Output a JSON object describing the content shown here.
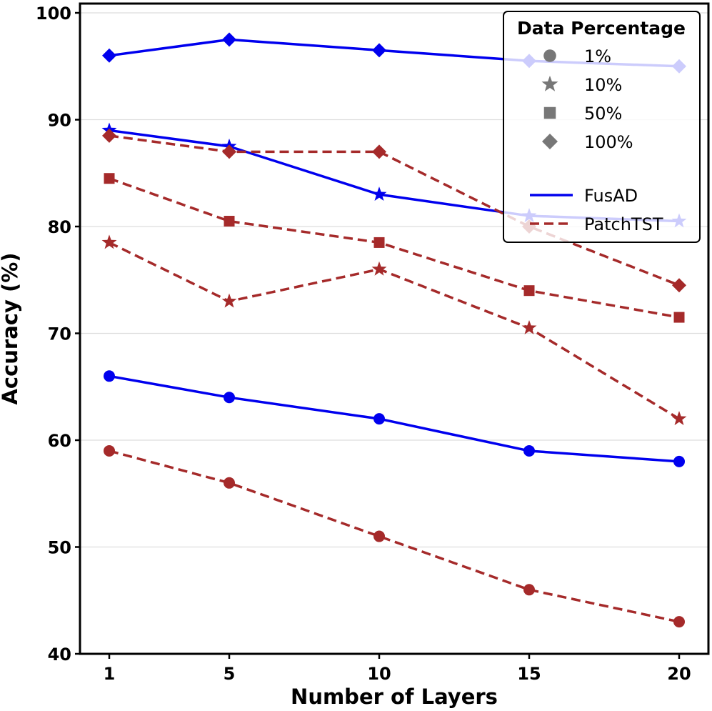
{
  "chart_data": {
    "type": "line",
    "xlabel": "Number of Layers",
    "ylabel": "Accuracy (%)",
    "x": [
      1,
      5,
      10,
      15,
      20
    ],
    "x_ticks": [
      "1",
      "5",
      "10",
      "15",
      "20"
    ],
    "ylim": [
      40,
      100
    ],
    "y_ticks": [
      "40",
      "50",
      "60",
      "70",
      "80",
      "90",
      "100"
    ],
    "grid": "horizontal",
    "legend_title": "Data Percentage",
    "legend_position": "top-right",
    "markers_legend": [
      {
        "label": "1%",
        "marker": "circle"
      },
      {
        "label": "10%",
        "marker": "star"
      },
      {
        "label": "50%",
        "marker": "square"
      },
      {
        "label": "100%",
        "marker": "diamond"
      }
    ],
    "models_legend": [
      {
        "label": "FusAD",
        "style": "solid",
        "color": "#0000ee"
      },
      {
        "label": "PatchTST",
        "style": "dashed",
        "color": "#a52a2a"
      }
    ],
    "series": [
      {
        "name": "FusAD 1%",
        "model": "FusAD",
        "marker": "circle",
        "values": [
          66,
          64,
          62,
          59,
          58
        ]
      },
      {
        "name": "FusAD 10%",
        "model": "FusAD",
        "marker": "star",
        "values": [
          89,
          87.5,
          83,
          81,
          80.5
        ]
      },
      {
        "name": "FusAD 100%",
        "model": "FusAD",
        "marker": "diamond",
        "values": [
          96,
          97.5,
          96.5,
          95.5,
          95
        ]
      },
      {
        "name": "PatchTST 1%",
        "model": "PatchTST",
        "marker": "circle",
        "values": [
          59,
          56,
          51,
          46,
          43
        ]
      },
      {
        "name": "PatchTST 10%",
        "model": "PatchTST",
        "marker": "star",
        "values": [
          78.5,
          73,
          76,
          70.5,
          62
        ]
      },
      {
        "name": "PatchTST 50%",
        "model": "PatchTST",
        "marker": "square",
        "values": [
          84.5,
          80.5,
          78.5,
          74,
          71.5
        ]
      },
      {
        "name": "PatchTST 100%",
        "model": "PatchTST",
        "marker": "diamond",
        "values": [
          88.5,
          87,
          87,
          80,
          74.5
        ]
      }
    ]
  }
}
